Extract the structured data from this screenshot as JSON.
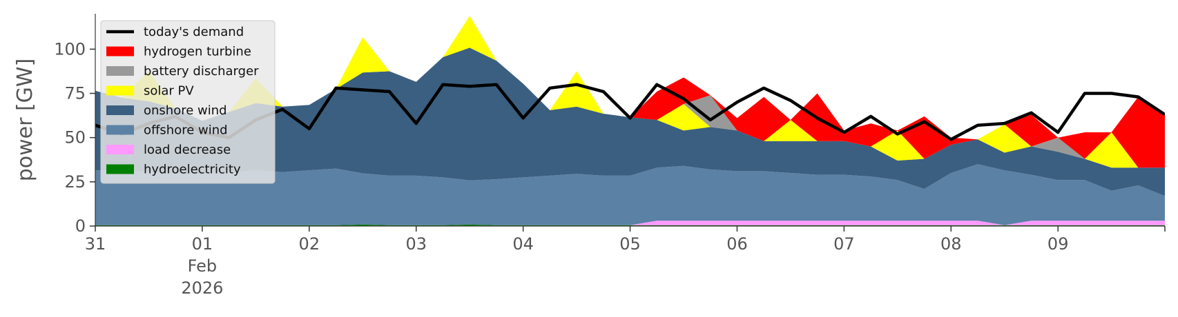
{
  "chart_data": {
    "type": "area",
    "title": "",
    "xlabel": "",
    "ylabel": "power [GW]",
    "ylim": [
      0,
      120
    ],
    "yticks": [
      0,
      25,
      50,
      75,
      100
    ],
    "x_range": [
      "2026-01-31T00:00",
      "2026-02-09T23:59"
    ],
    "x_ticks": [
      {
        "date": "2026-01-31",
        "label": "31"
      },
      {
        "date": "2026-02-01",
        "label": "01",
        "sublabels": [
          "Feb",
          "2026"
        ]
      },
      {
        "date": "2026-02-02",
        "label": "02"
      },
      {
        "date": "2026-02-03",
        "label": "03"
      },
      {
        "date": "2026-02-04",
        "label": "04"
      },
      {
        "date": "2026-02-05",
        "label": "05"
      },
      {
        "date": "2026-02-06",
        "label": "06"
      },
      {
        "date": "2026-02-07",
        "label": "07"
      },
      {
        "date": "2026-02-08",
        "label": "08"
      },
      {
        "date": "2026-02-09",
        "label": "09"
      }
    ],
    "grid": false,
    "legend_position": "top-left",
    "x_dates": [
      "2026-01-31T00:00",
      "2026-01-31T06:00",
      "2026-01-31T12:00",
      "2026-01-31T18:00",
      "2026-02-01T00:00",
      "2026-02-01T06:00",
      "2026-02-01T12:00",
      "2026-02-01T18:00",
      "2026-02-02T00:00",
      "2026-02-02T06:00",
      "2026-02-02T12:00",
      "2026-02-02T18:00",
      "2026-02-03T00:00",
      "2026-02-03T06:00",
      "2026-02-03T12:00",
      "2026-02-03T18:00",
      "2026-02-04T00:00",
      "2026-02-04T06:00",
      "2026-02-04T12:00",
      "2026-02-04T18:00",
      "2026-02-05T00:00",
      "2026-02-05T06:00",
      "2026-02-05T12:00",
      "2026-02-05T18:00",
      "2026-02-06T00:00",
      "2026-02-06T06:00",
      "2026-02-06T12:00",
      "2026-02-06T18:00",
      "2026-02-07T00:00",
      "2026-02-07T06:00",
      "2026-02-07T12:00",
      "2026-02-07T18:00",
      "2026-02-08T00:00",
      "2026-02-08T06:00",
      "2026-02-08T12:00",
      "2026-02-08T18:00",
      "2026-02-09T00:00",
      "2026-02-09T06:00",
      "2026-02-09T12:00",
      "2026-02-09T18:00",
      "2026-02-09T23:59"
    ],
    "series": [
      {
        "name": "hydroelectricity",
        "kind": "area",
        "color": "#008000",
        "values": [
          0.5,
          0.5,
          0.5,
          0.5,
          0.5,
          0.5,
          0.5,
          0.5,
          0.5,
          0.5,
          0.8,
          0.5,
          0.5,
          0.5,
          0.8,
          0.5,
          0.5,
          0.5,
          0.5,
          0.5,
          0.5,
          0.5,
          0.5,
          0.5,
          0.5,
          0.5,
          0.5,
          0.5,
          0.5,
          0.5,
          0.5,
          0.5,
          0.5,
          0.5,
          0.5,
          0.5,
          0.5,
          0.5,
          0.5,
          0.5,
          0.5
        ]
      },
      {
        "name": "load decrease",
        "kind": "area",
        "color": "#ff99ff",
        "values": [
          0,
          0,
          0,
          0,
          0,
          0,
          0,
          0,
          0,
          0,
          0,
          0,
          0,
          0,
          0,
          0,
          0,
          0,
          0,
          0,
          0,
          2.5,
          2.5,
          2.5,
          2.5,
          2.5,
          2.5,
          2.5,
          2.5,
          2.5,
          2.5,
          2.5,
          2.5,
          2.5,
          0,
          2.5,
          2.5,
          2.5,
          2.5,
          2.5,
          2.5
        ]
      },
      {
        "name": "offshore wind",
        "kind": "area",
        "color": "#5b81a5",
        "values": [
          31,
          31,
          30,
          29,
          29,
          30,
          31,
          30,
          31,
          32,
          29,
          28,
          28,
          27,
          25,
          26,
          27,
          28,
          29,
          28,
          28,
          30,
          31,
          29,
          28,
          28,
          27,
          26,
          26,
          25,
          23,
          18,
          27,
          32,
          31,
          26,
          23,
          23,
          17,
          20,
          14
        ]
      },
      {
        "name": "onshore wind",
        "kind": "area",
        "color": "#3b5f80",
        "values": [
          45,
          41,
          40,
          37,
          30,
          34,
          38,
          37,
          37,
          45,
          57,
          59,
          53,
          68,
          75,
          67,
          53,
          37,
          38,
          35,
          33,
          27,
          20,
          24,
          23,
          17,
          18,
          19,
          19,
          17,
          11,
          17,
          16,
          14,
          10,
          16,
          16,
          12,
          13,
          10,
          16
        ]
      },
      {
        "name": "solar PV",
        "kind": "area",
        "color": "#ffff00",
        "values": [
          0,
          0,
          17,
          0,
          0,
          0,
          14,
          0,
          0,
          0,
          20,
          0,
          0,
          0,
          18,
          0,
          0,
          0,
          20,
          0,
          0,
          0,
          15,
          0,
          0,
          0,
          12,
          0,
          0,
          0,
          17,
          0,
          0,
          0,
          16,
          0,
          0,
          0,
          20,
          0,
          0
        ]
      },
      {
        "name": "battery discharger",
        "kind": "area",
        "color": "#999999",
        "values": [
          0,
          0,
          0,
          0,
          0,
          0,
          0,
          0,
          0,
          0,
          0,
          0,
          0,
          0,
          0,
          0,
          0,
          0,
          0,
          0,
          0,
          0,
          0,
          18,
          0,
          0,
          0,
          0,
          0,
          0,
          0,
          0,
          0,
          0,
          0,
          0,
          8,
          0,
          0,
          0,
          0
        ]
      },
      {
        "name": "hydrogen turbine",
        "kind": "area",
        "color": "#ff0000",
        "values": [
          0,
          0,
          0,
          0,
          0,
          0,
          0,
          0,
          0,
          0,
          0,
          0,
          0,
          0,
          0,
          0,
          0,
          0,
          0,
          0,
          0,
          16,
          15,
          0,
          7,
          25,
          0,
          27,
          6,
          13,
          0,
          24,
          4,
          0,
          0,
          18,
          0,
          15,
          0,
          40,
          30
        ]
      },
      {
        "name": "today's demand",
        "kind": "line",
        "color": "#000000",
        "values": [
          57,
          52,
          58,
          62,
          53,
          50,
          60,
          66,
          55,
          78,
          77,
          76,
          58,
          80,
          79,
          80,
          61,
          78,
          80,
          76,
          61,
          80,
          72,
          60,
          70,
          78,
          71,
          61,
          53,
          62,
          52,
          59,
          49,
          57,
          58,
          64,
          53,
          75,
          75,
          73,
          63
        ]
      }
    ]
  }
}
